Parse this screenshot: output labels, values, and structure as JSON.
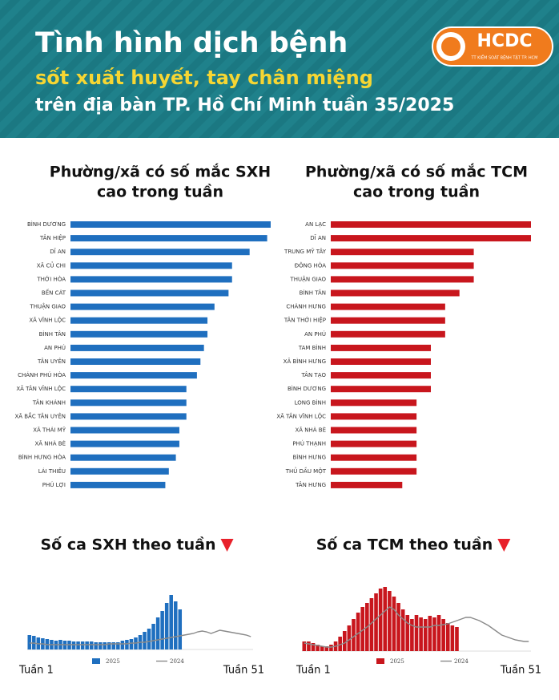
{
  "header": {
    "title": "Tình hình dịch bệnh",
    "subtitle": "sốt xuất huyết, tay chân miệng",
    "subtitle2": "trên địa bàn TP. Hồ Chí Minh tuần 35/2025",
    "logo": "HCDC",
    "logo_caption": "TT KIỂM SOÁT BỆNH TẬT TP. HCM"
  },
  "chart_data": [
    {
      "type": "hbar",
      "title": [
        "Phường/xã có số mắc SXH",
        "cao trong tuần"
      ],
      "color": "#1f6fbf",
      "categories": [
        "BÌNH DƯƠNG",
        "TÂN HIỆP",
        "DĨ AN",
        "XÃ CỦ CHI",
        "THỚI HÒA",
        "BẾN CÁT",
        "THUẬN GIAO",
        "XÃ VĨNH LỘC",
        "BÌNH TÂN",
        "AN PHÚ",
        "TÂN UYÊN",
        "CHÁNH PHÚ HÒA",
        "XÃ TÂN VĨNH LỘC",
        "TÂN KHÁNH",
        "XÃ BẮC TÂN UYÊN",
        "XÃ THÁI MỸ",
        "XÃ NHÀ BÈ",
        "BÌNH HƯNG HÒA",
        "LÁI THIÊU",
        "PHÚ LỢI"
      ],
      "values": [
        57,
        56,
        51,
        46,
        46,
        45,
        41,
        39,
        39,
        38,
        37,
        36,
        33,
        33,
        33,
        31,
        31,
        30,
        28,
        27
      ]
    },
    {
      "type": "hbar",
      "title": [
        "Phường/xã có số mắc TCM",
        "cao trong tuần"
      ],
      "color": "#c8161d",
      "categories": [
        "AN LẠC",
        "DĨ AN",
        "TRUNG MỸ TÂY",
        "ĐÔNG HÒA",
        "THUẬN GIAO",
        "BÌNH TÂN",
        "CHÁNH HƯNG",
        "TÂN THỚI HIỆP",
        "AN PHÚ",
        "TAM BÌNH",
        "XÃ BÌNH HƯNG",
        "TÂN TẠO",
        "BÌNH DƯƠNG",
        "LONG BÌNH",
        "XÃ TÂN VĨNH LỘC",
        "XÃ NHÀ BÈ",
        "PHÚ THẠNH",
        "BÌNH HƯNG",
        "THỦ DẦU MỘT",
        "TÂN HƯNG"
      ],
      "values": [
        14,
        14,
        10,
        10,
        10,
        9,
        8,
        8,
        8,
        7,
        7,
        7,
        7,
        6,
        6,
        6,
        6,
        6,
        6,
        5
      ]
    },
    {
      "type": "bar_line",
      "title": "Số ca SXH theo tuần",
      "ylim": [
        0,
        80
      ],
      "categories": [
        "Tuần 1",
        null,
        null,
        null,
        null,
        null,
        null,
        null,
        null,
        null,
        null,
        null,
        null,
        null,
        null,
        null,
        null,
        null,
        null,
        null,
        null,
        null,
        null,
        null,
        null,
        null,
        null,
        null,
        null,
        null,
        null,
        null,
        null,
        null,
        null,
        null,
        null,
        null,
        null,
        null,
        null,
        null,
        null,
        null,
        null,
        null,
        null,
        null,
        null,
        null,
        "Tuần 51"
      ],
      "series": [
        {
          "name": "2025",
          "kind": "bar",
          "color": "#1f6fbf",
          "values": [
            18,
            17,
            15,
            14,
            13,
            12,
            11,
            12,
            11,
            11,
            10,
            10,
            10,
            10,
            10,
            9,
            9,
            9,
            9,
            9,
            9,
            11,
            12,
            13,
            15,
            18,
            22,
            26,
            32,
            40,
            48,
            58,
            68,
            60,
            50,
            null,
            null,
            null,
            null,
            null,
            null,
            null,
            null,
            null,
            null,
            null,
            null,
            null,
            null,
            null,
            null
          ]
        },
        {
          "name": "2024",
          "kind": "line",
          "color": "#8a8a8a",
          "values": [
            8,
            8,
            7,
            7,
            6,
            6,
            6,
            6,
            6,
            6,
            6,
            6,
            6,
            6,
            6,
            6,
            6,
            6,
            7,
            7,
            7,
            7,
            7,
            8,
            8,
            9,
            9,
            10,
            11,
            12,
            13,
            14,
            15,
            16,
            17,
            18,
            19,
            20,
            22,
            23,
            22,
            20,
            22,
            24,
            23,
            22,
            21,
            20,
            19,
            18,
            16
          ]
        }
      ]
    },
    {
      "type": "bar_line",
      "title": "Số ca TCM theo tuần",
      "ylim": [
        0,
        80
      ],
      "categories": [
        "Tuần 1",
        null,
        null,
        null,
        null,
        null,
        null,
        null,
        null,
        null,
        null,
        null,
        null,
        null,
        null,
        null,
        null,
        null,
        null,
        null,
        null,
        null,
        null,
        null,
        null,
        null,
        null,
        null,
        null,
        null,
        null,
        null,
        null,
        null,
        null,
        null,
        null,
        null,
        null,
        null,
        null,
        null,
        null,
        null,
        null,
        null,
        null,
        null,
        null,
        null,
        "Tuần 51"
      ],
      "series": [
        {
          "name": "2025",
          "kind": "bar",
          "color": "#c8161d",
          "values": [
            12,
            12,
            10,
            8,
            6,
            6,
            8,
            12,
            18,
            25,
            32,
            40,
            48,
            55,
            60,
            66,
            72,
            78,
            80,
            75,
            68,
            60,
            52,
            45,
            40,
            45,
            42,
            40,
            44,
            42,
            45,
            40,
            35,
            32,
            30,
            null,
            null,
            null,
            null,
            null,
            null,
            null,
            null,
            null,
            null,
            null,
            null,
            null,
            null,
            null,
            null
          ]
        },
        {
          "name": "2024",
          "kind": "line",
          "color": "#8a8a8a",
          "values": [
            10,
            9,
            8,
            7,
            6,
            5,
            5,
            6,
            8,
            10,
            14,
            18,
            22,
            26,
            30,
            35,
            40,
            45,
            50,
            55,
            52,
            45,
            40,
            35,
            32,
            30,
            30,
            30,
            30,
            32,
            32,
            33,
            34,
            36,
            38,
            40,
            42,
            42,
            40,
            38,
            35,
            32,
            28,
            24,
            20,
            18,
            16,
            14,
            13,
            12,
            12
          ]
        }
      ]
    }
  ]
}
